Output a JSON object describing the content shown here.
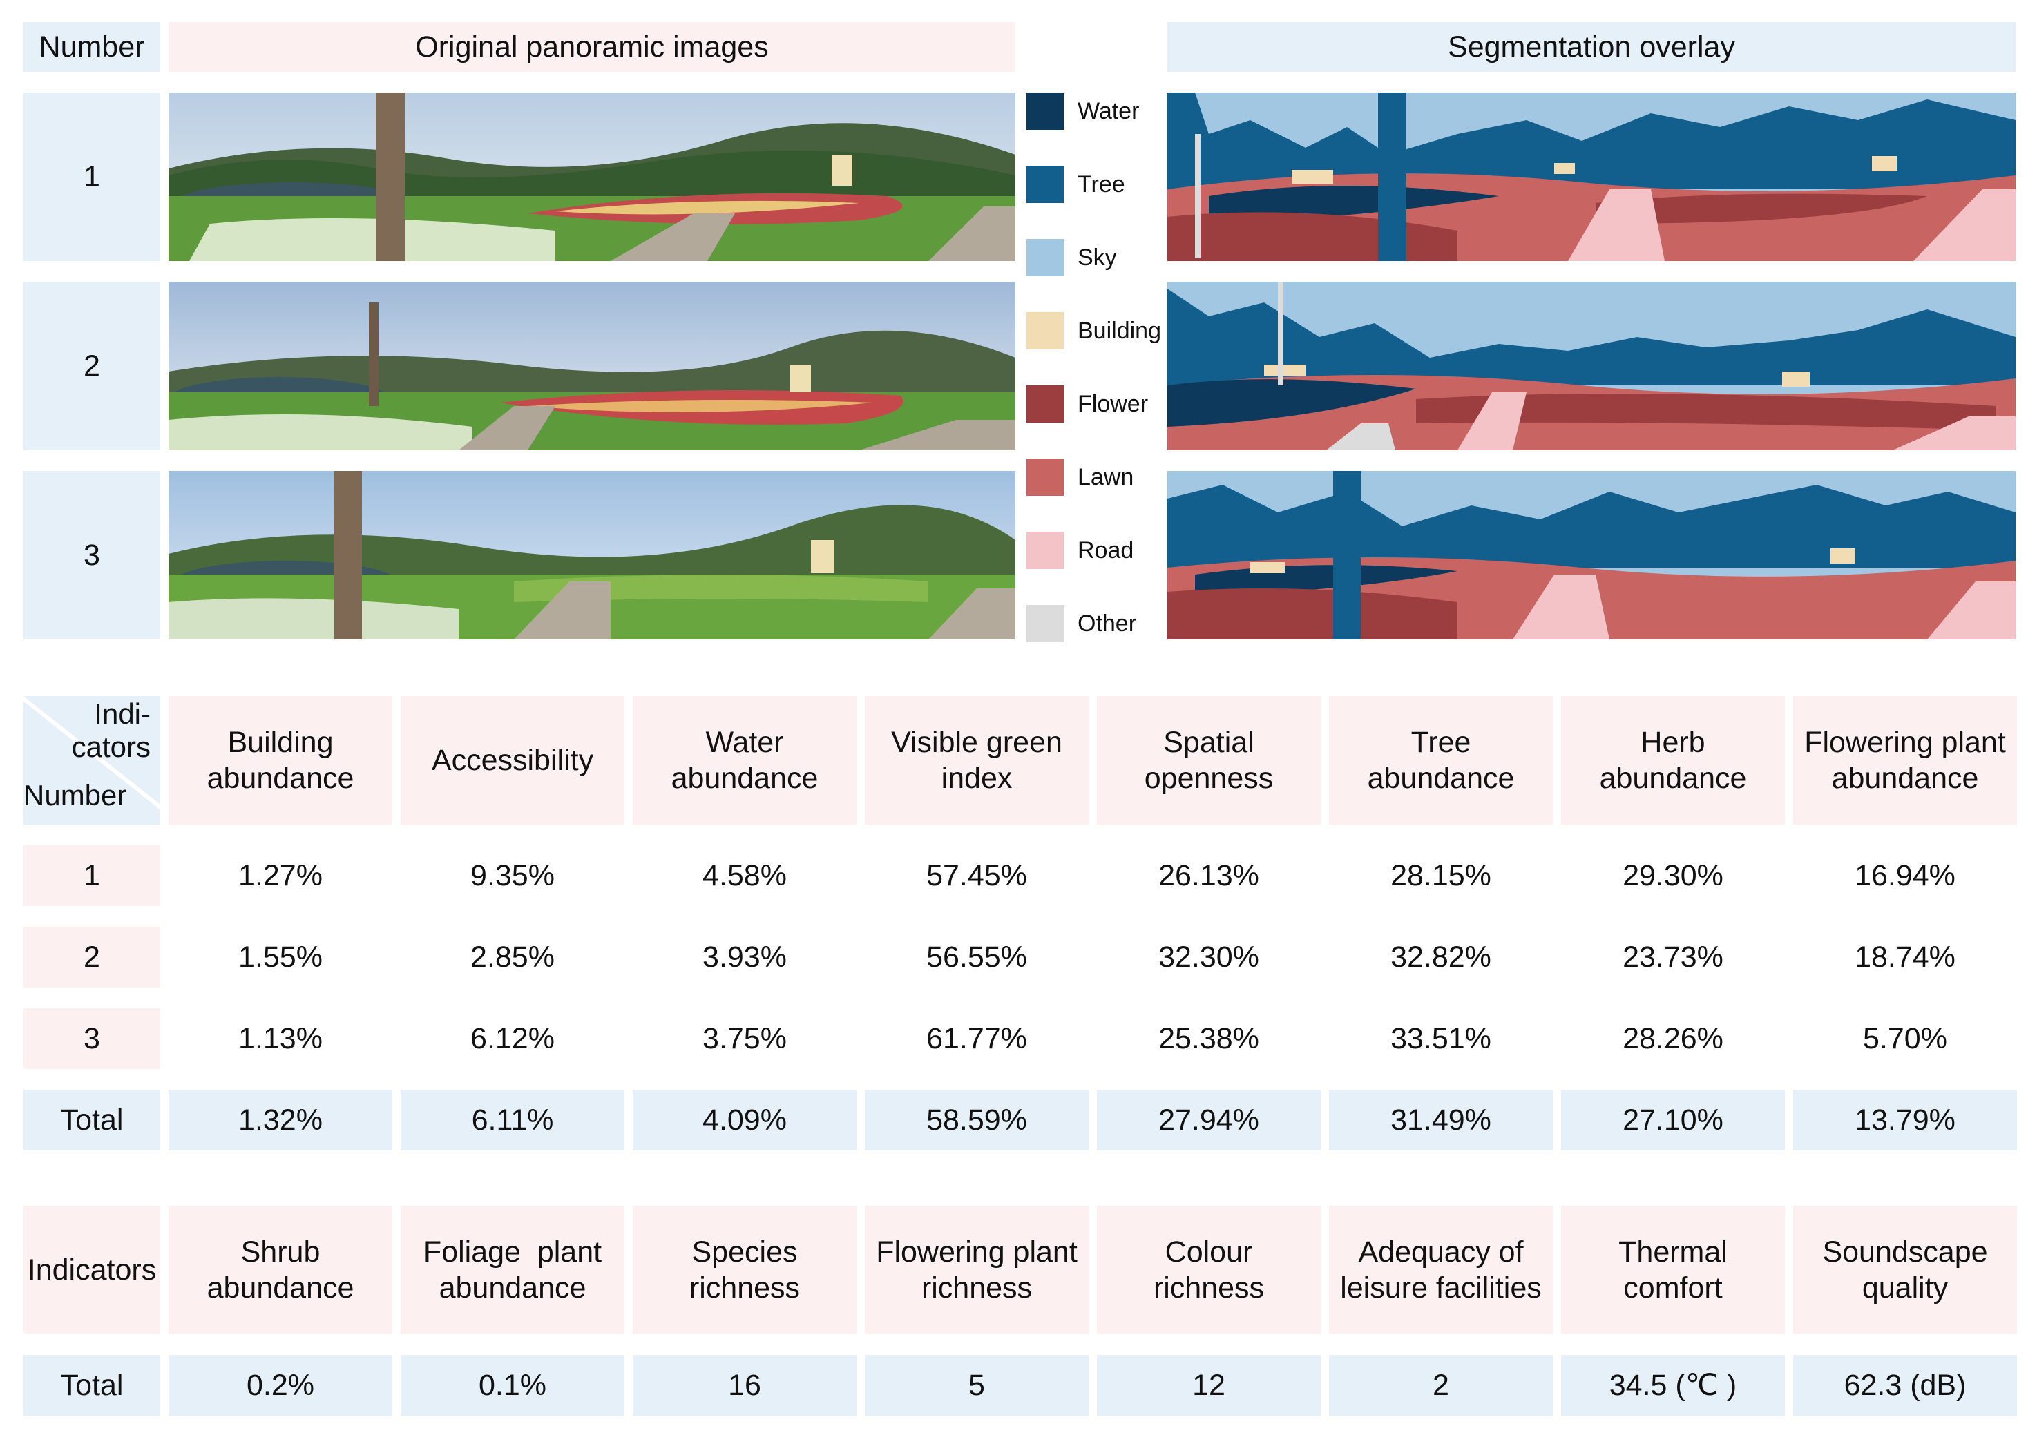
{
  "header": {
    "number": "Number",
    "original": "Original panoramic images",
    "segmentation": "Segmentation overlay"
  },
  "rows": [
    "1",
    "2",
    "3"
  ],
  "legend": [
    {
      "label": "Water",
      "color": "#0d3a5c"
    },
    {
      "label": "Tree",
      "color": "#125f8d"
    },
    {
      "label": "Sky",
      "color": "#a2c7e3"
    },
    {
      "label": "Building",
      "color": "#f2dcb4"
    },
    {
      "label": "Flower",
      "color": "#9c3d3f"
    },
    {
      "label": "Lawn",
      "color": "#c86462"
    },
    {
      "label": "Road",
      "color": "#f4c3c8"
    },
    {
      "label": "Other",
      "color": "#dcdcdc"
    }
  ],
  "table1": {
    "corner_top": "Indi-\ncators",
    "corner_bottom": "Number",
    "headers": [
      "Building\nabundance",
      "Accessibility",
      "Water\nabundance",
      "Visible green\nindex",
      "Spatial\nopenness",
      "Tree\nabundance",
      "Herb\nabundance",
      "Flowering plant\nabundance"
    ],
    "rows": [
      {
        "label": "1",
        "values": [
          "1.27%",
          "9.35%",
          "4.58%",
          "57.45%",
          "26.13%",
          "28.15%",
          "29.30%",
          "16.94%"
        ]
      },
      {
        "label": "2",
        "values": [
          "1.55%",
          "2.85%",
          "3.93%",
          "56.55%",
          "32.30%",
          "32.82%",
          "23.73%",
          "18.74%"
        ]
      },
      {
        "label": "3",
        "values": [
          "1.13%",
          "6.12%",
          "3.75%",
          "61.77%",
          "25.38%",
          "33.51%",
          "28.26%",
          "5.70%"
        ]
      },
      {
        "label": "Total",
        "values": [
          "1.32%",
          "6.11%",
          "4.09%",
          "58.59%",
          "27.94%",
          "31.49%",
          "27.10%",
          "13.79%"
        ]
      }
    ]
  },
  "table2": {
    "corner": "Indicators",
    "headers": [
      "Shrub\nabundance",
      "Foliage  plant\nabundance",
      "Species\nrichness",
      "Flowering plant\nrichness",
      "Colour\nrichness",
      "Adequacy of\nleisure facilities",
      "Thermal\ncomfort",
      "Soundscape\nquality"
    ],
    "row": {
      "label": "Total",
      "values": [
        "0.2%",
        "0.1%",
        "16",
        "5",
        "12",
        "2",
        "34.5 (℃ )",
        "62.3 (dB)"
      ]
    }
  }
}
